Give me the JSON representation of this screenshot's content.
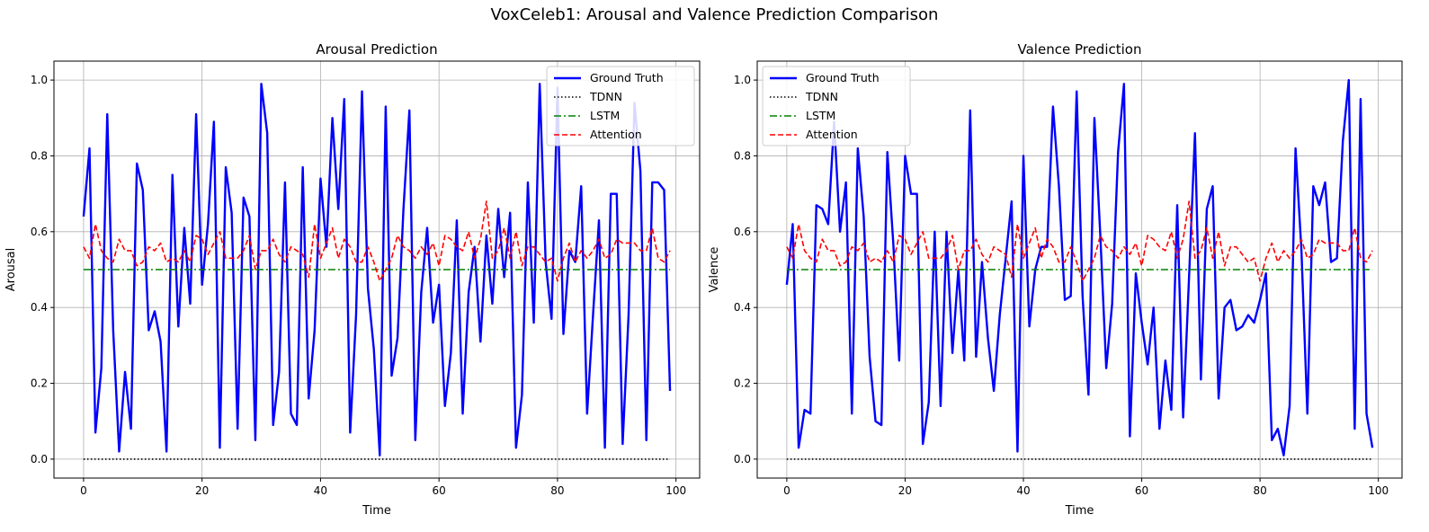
{
  "figure": {
    "title": "VoxCeleb1: Arousal and Valence Prediction Comparison"
  },
  "colors": {
    "ground_truth": "#0000ff",
    "tdnn": "#000000",
    "lstm": "#008000",
    "attention": "#ff0000",
    "grid": "#b0b0b0"
  },
  "chart_data": [
    {
      "type": "line",
      "title": "Arousal Prediction",
      "xlabel": "Time",
      "ylabel": "Arousal",
      "xlim": [
        -5,
        104
      ],
      "ylim": [
        -0.05,
        1.05
      ],
      "xticks": [
        0,
        20,
        40,
        60,
        80,
        100
      ],
      "yticks": [
        0.0,
        0.2,
        0.4,
        0.6,
        0.8,
        1.0
      ],
      "grid": true,
      "legend_position": "upper right",
      "x": [
        0,
        1,
        2,
        3,
        4,
        5,
        6,
        7,
        8,
        9,
        10,
        11,
        12,
        13,
        14,
        15,
        16,
        17,
        18,
        19,
        20,
        21,
        22,
        23,
        24,
        25,
        26,
        27,
        28,
        29,
        30,
        31,
        32,
        33,
        34,
        35,
        36,
        37,
        38,
        39,
        40,
        41,
        42,
        43,
        44,
        45,
        46,
        47,
        48,
        49,
        50,
        51,
        52,
        53,
        54,
        55,
        56,
        57,
        58,
        59,
        60,
        61,
        62,
        63,
        64,
        65,
        66,
        67,
        68,
        69,
        70,
        71,
        72,
        73,
        74,
        75,
        76,
        77,
        78,
        79,
        80,
        81,
        82,
        83,
        84,
        85,
        86,
        87,
        88,
        89,
        90,
        91,
        92,
        93,
        94,
        95,
        96,
        97,
        98,
        99
      ],
      "series": [
        {
          "name": "Ground Truth",
          "style": "solid",
          "values": [
            0.64,
            0.82,
            0.07,
            0.24,
            0.91,
            0.34,
            0.02,
            0.23,
            0.08,
            0.78,
            0.71,
            0.34,
            0.39,
            0.31,
            0.02,
            0.75,
            0.35,
            0.61,
            0.41,
            0.91,
            0.46,
            0.62,
            0.89,
            0.03,
            0.77,
            0.65,
            0.08,
            0.69,
            0.64,
            0.05,
            0.99,
            0.86,
            0.09,
            0.23,
            0.73,
            0.12,
            0.09,
            0.77,
            0.16,
            0.34,
            0.74,
            0.56,
            0.9,
            0.66,
            0.95,
            0.07,
            0.38,
            0.97,
            0.45,
            0.29,
            0.01,
            0.93,
            0.22,
            0.32,
            0.66,
            0.92,
            0.05,
            0.44,
            0.61,
            0.36,
            0.46,
            0.14,
            0.28,
            0.63,
            0.12,
            0.44,
            0.56,
            0.31,
            0.59,
            0.41,
            0.66,
            0.48,
            0.65,
            0.03,
            0.17,
            0.73,
            0.36,
            0.99,
            0.52,
            0.37,
            0.98,
            0.33,
            0.55,
            0.52,
            0.72,
            0.12,
            0.38,
            0.63,
            0.03,
            0.7,
            0.7,
            0.04,
            0.38,
            0.94,
            0.76,
            0.05,
            0.73,
            0.73,
            0.71,
            0.18
          ]
        },
        {
          "name": "TDNN",
          "style": "dotted",
          "constant": 0.0
        },
        {
          "name": "LSTM",
          "style": "dashdot",
          "constant": 0.5
        },
        {
          "name": "Attention",
          "style": "dashed",
          "values": [
            0.56,
            0.53,
            0.62,
            0.55,
            0.53,
            0.52,
            0.58,
            0.55,
            0.55,
            0.51,
            0.52,
            0.56,
            0.55,
            0.57,
            0.52,
            0.53,
            0.52,
            0.55,
            0.52,
            0.59,
            0.58,
            0.54,
            0.57,
            0.6,
            0.53,
            0.53,
            0.53,
            0.55,
            0.59,
            0.5,
            0.55,
            0.55,
            0.58,
            0.54,
            0.52,
            0.56,
            0.55,
            0.54,
            0.48,
            0.62,
            0.53,
            0.57,
            0.61,
            0.53,
            0.58,
            0.56,
            0.52,
            0.52,
            0.56,
            0.52,
            0.47,
            0.5,
            0.53,
            0.59,
            0.56,
            0.55,
            0.53,
            0.56,
            0.54,
            0.57,
            0.51,
            0.59,
            0.58,
            0.56,
            0.55,
            0.6,
            0.53,
            0.58,
            0.68,
            0.53,
            0.55,
            0.61,
            0.53,
            0.6,
            0.51,
            0.56,
            0.56,
            0.54,
            0.52,
            0.53,
            0.47,
            0.53,
            0.57,
            0.52,
            0.55,
            0.53,
            0.55,
            0.58,
            0.53,
            0.54,
            0.58,
            0.57,
            0.57,
            0.57,
            0.55,
            0.55,
            0.61,
            0.53,
            0.52,
            0.55
          ]
        }
      ]
    },
    {
      "type": "line",
      "title": "Valence Prediction",
      "xlabel": "Time",
      "ylabel": "Valence",
      "xlim": [
        -5,
        104
      ],
      "ylim": [
        -0.05,
        1.05
      ],
      "xticks": [
        0,
        20,
        40,
        60,
        80,
        100
      ],
      "yticks": [
        0.0,
        0.2,
        0.4,
        0.6,
        0.8,
        1.0
      ],
      "grid": true,
      "legend_position": "upper left",
      "x": [
        0,
        1,
        2,
        3,
        4,
        5,
        6,
        7,
        8,
        9,
        10,
        11,
        12,
        13,
        14,
        15,
        16,
        17,
        18,
        19,
        20,
        21,
        22,
        23,
        24,
        25,
        26,
        27,
        28,
        29,
        30,
        31,
        32,
        33,
        34,
        35,
        36,
        37,
        38,
        39,
        40,
        41,
        42,
        43,
        44,
        45,
        46,
        47,
        48,
        49,
        50,
        51,
        52,
        53,
        54,
        55,
        56,
        57,
        58,
        59,
        60,
        61,
        62,
        63,
        64,
        65,
        66,
        67,
        68,
        69,
        70,
        71,
        72,
        73,
        74,
        75,
        76,
        77,
        78,
        79,
        80,
        81,
        82,
        83,
        84,
        85,
        86,
        87,
        88,
        89,
        90,
        91,
        92,
        93,
        94,
        95,
        96,
        97,
        98,
        99
      ],
      "series": [
        {
          "name": "Ground Truth",
          "style": "solid",
          "values": [
            0.46,
            0.62,
            0.03,
            0.13,
            0.12,
            0.67,
            0.66,
            0.62,
            0.89,
            0.6,
            0.73,
            0.12,
            0.82,
            0.64,
            0.27,
            0.1,
            0.09,
            0.81,
            0.57,
            0.26,
            0.8,
            0.7,
            0.7,
            0.04,
            0.15,
            0.6,
            0.14,
            0.6,
            0.28,
            0.5,
            0.26,
            0.92,
            0.27,
            0.52,
            0.32,
            0.18,
            0.38,
            0.53,
            0.68,
            0.02,
            0.8,
            0.35,
            0.5,
            0.56,
            0.56,
            0.93,
            0.72,
            0.42,
            0.43,
            0.97,
            0.43,
            0.17,
            0.9,
            0.59,
            0.24,
            0.41,
            0.81,
            0.99,
            0.06,
            0.49,
            0.36,
            0.25,
            0.4,
            0.08,
            0.26,
            0.13,
            0.67,
            0.11,
            0.48,
            0.86,
            0.21,
            0.66,
            0.72,
            0.16,
            0.4,
            0.42,
            0.34,
            0.35,
            0.38,
            0.36,
            0.42,
            0.49,
            0.05,
            0.08,
            0.01,
            0.14,
            0.82,
            0.55,
            0.12,
            0.72,
            0.67,
            0.73,
            0.52,
            0.53,
            0.84,
            1.0,
            0.08,
            0.95,
            0.12,
            0.03
          ]
        },
        {
          "name": "TDNN",
          "style": "dotted",
          "constant": 0.0
        },
        {
          "name": "LSTM",
          "style": "dashdot",
          "constant": 0.5
        },
        {
          "name": "Attention",
          "style": "dashed",
          "values": [
            0.56,
            0.53,
            0.62,
            0.55,
            0.53,
            0.52,
            0.58,
            0.55,
            0.55,
            0.51,
            0.52,
            0.56,
            0.55,
            0.57,
            0.52,
            0.53,
            0.52,
            0.55,
            0.52,
            0.59,
            0.58,
            0.54,
            0.57,
            0.6,
            0.53,
            0.53,
            0.53,
            0.55,
            0.59,
            0.5,
            0.55,
            0.55,
            0.58,
            0.54,
            0.52,
            0.56,
            0.55,
            0.54,
            0.48,
            0.62,
            0.53,
            0.57,
            0.61,
            0.53,
            0.58,
            0.56,
            0.52,
            0.52,
            0.56,
            0.52,
            0.47,
            0.5,
            0.53,
            0.59,
            0.56,
            0.55,
            0.53,
            0.56,
            0.54,
            0.57,
            0.51,
            0.59,
            0.58,
            0.56,
            0.55,
            0.6,
            0.53,
            0.58,
            0.68,
            0.53,
            0.55,
            0.61,
            0.53,
            0.6,
            0.51,
            0.56,
            0.56,
            0.54,
            0.52,
            0.53,
            0.47,
            0.53,
            0.57,
            0.52,
            0.55,
            0.53,
            0.55,
            0.58,
            0.53,
            0.54,
            0.58,
            0.57,
            0.57,
            0.57,
            0.55,
            0.55,
            0.61,
            0.53,
            0.52,
            0.55
          ]
        }
      ]
    }
  ]
}
